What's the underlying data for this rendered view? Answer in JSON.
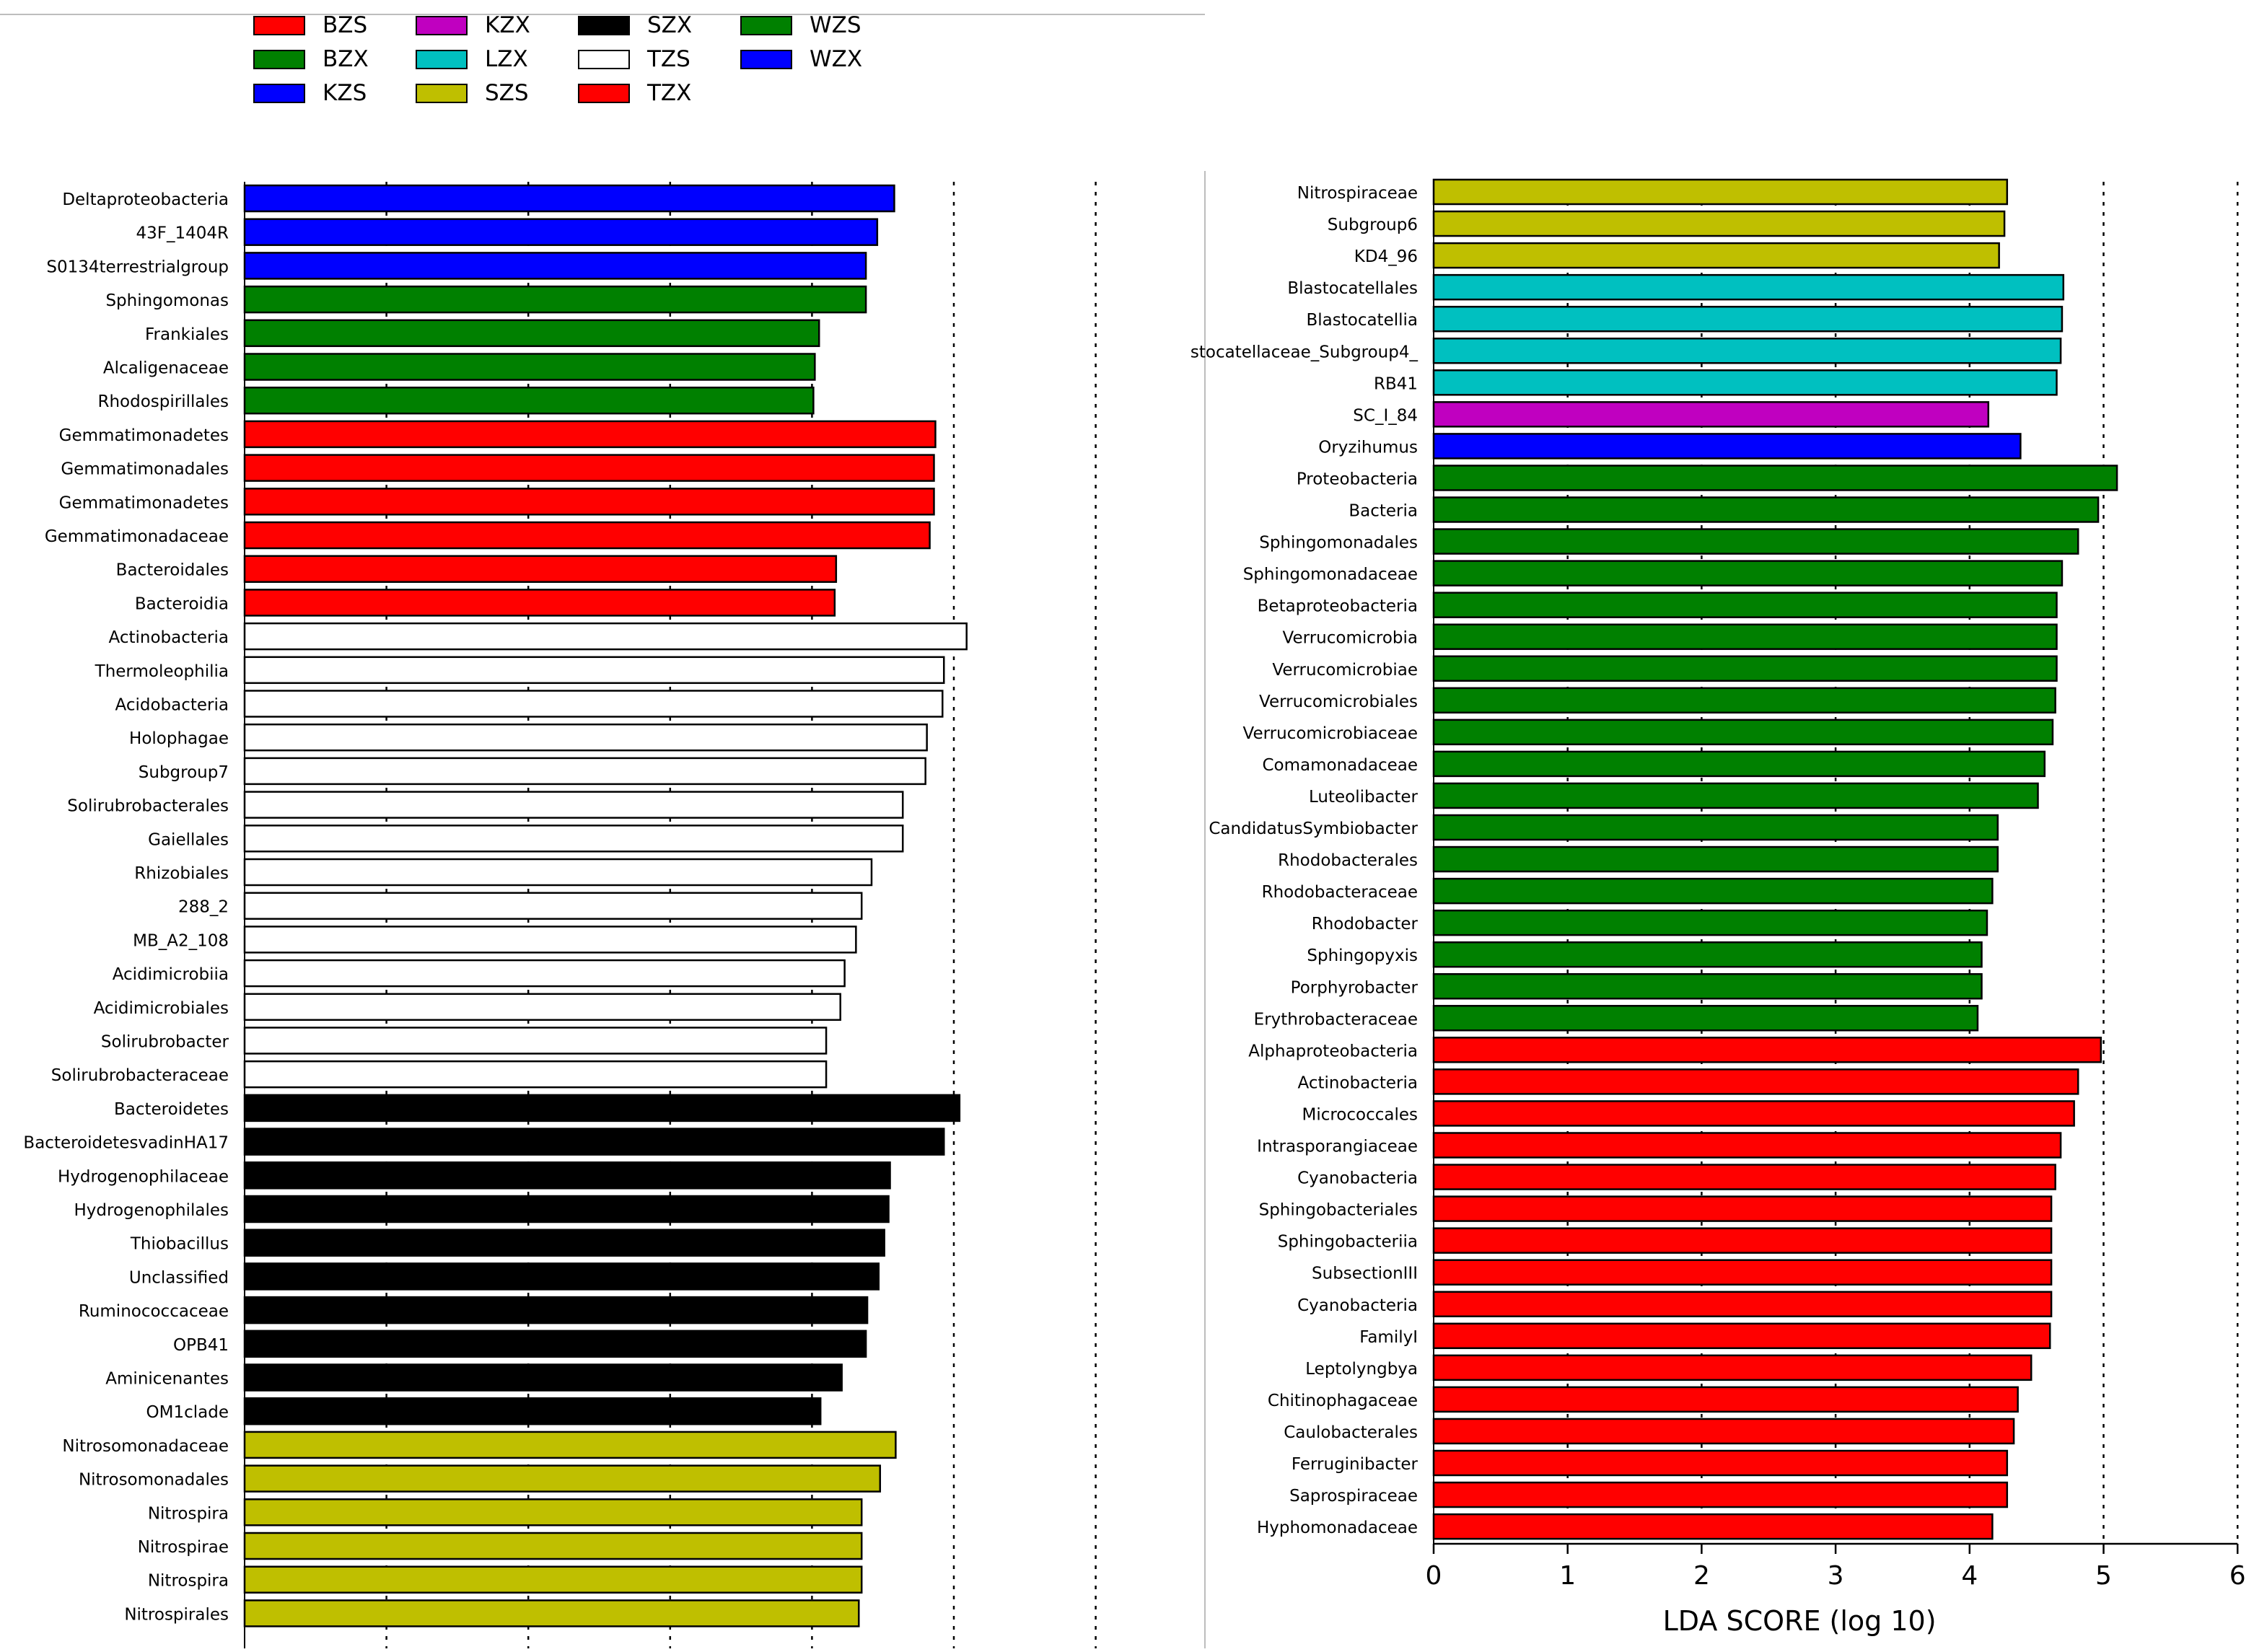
{
  "chart_data": {
    "type": "bar",
    "orientation": "horizontal",
    "title": "",
    "xlabel": "LDA SCORE (log 10)",
    "xlim": [
      0,
      6
    ],
    "xticks": [
      "0",
      "1",
      "2",
      "3",
      "4",
      "5",
      "6"
    ],
    "grid": "vertical dotted",
    "legend": {
      "position": "top-left",
      "items": [
        {
          "label": "BZS",
          "color": "#ff0000"
        },
        {
          "label": "BZX",
          "color": "#008000"
        },
        {
          "label": "KZS",
          "color": "#0000ff"
        },
        {
          "label": "KZX",
          "color": "#c000c0"
        },
        {
          "label": "LZX",
          "color": "#00c0c0"
        },
        {
          "label": "SZS",
          "color": "#bfbf00"
        },
        {
          "label": "SZX",
          "color": "#000000"
        },
        {
          "label": "TZS",
          "color": "#ffffff"
        },
        {
          "label": "TZX",
          "color": "#ff0000"
        },
        {
          "label": "WZS",
          "color": "#008000"
        },
        {
          "label": "WZX",
          "color": "#0000ff"
        }
      ]
    },
    "panels": [
      {
        "name": "left",
        "bars": [
          {
            "label": "Deltaproteobacteria",
            "value": 4.58,
            "group": "KZS"
          },
          {
            "label": "43F_1404R",
            "value": 4.46,
            "group": "KZS"
          },
          {
            "label": "S0134terrestrialgroup",
            "value": 4.38,
            "group": "KZS"
          },
          {
            "label": "Sphingomonas",
            "value": 4.38,
            "group": "BZX"
          },
          {
            "label": "Frankiales",
            "value": 4.05,
            "group": "BZX"
          },
          {
            "label": "Alcaligenaceae",
            "value": 4.02,
            "group": "BZX"
          },
          {
            "label": "Rhodospirillales",
            "value": 4.01,
            "group": "BZX"
          },
          {
            "label": "Gemmatimonadetes",
            "value": 4.87,
            "group": "BZS"
          },
          {
            "label": "Gemmatimonadales",
            "value": 4.86,
            "group": "BZS"
          },
          {
            "label": "Gemmatimonadetes",
            "value": 4.86,
            "group": "BZS"
          },
          {
            "label": "Gemmatimonadaceae",
            "value": 4.83,
            "group": "BZS"
          },
          {
            "label": "Bacteroidales",
            "value": 4.17,
            "group": "BZS"
          },
          {
            "label": "Bacteroidia",
            "value": 4.16,
            "group": "BZS"
          },
          {
            "label": "Actinobacteria",
            "value": 5.09,
            "group": "TZS"
          },
          {
            "label": "Thermoleophilia",
            "value": 4.93,
            "group": "TZS"
          },
          {
            "label": "Acidobacteria",
            "value": 4.92,
            "group": "TZS"
          },
          {
            "label": "Holophagae",
            "value": 4.81,
            "group": "TZS"
          },
          {
            "label": "Subgroup7",
            "value": 4.8,
            "group": "TZS"
          },
          {
            "label": "Solirubrobacterales",
            "value": 4.64,
            "group": "TZS"
          },
          {
            "label": "Gaiellales",
            "value": 4.64,
            "group": "TZS"
          },
          {
            "label": "Rhizobiales",
            "value": 4.42,
            "group": "TZS"
          },
          {
            "label": "288_2",
            "value": 4.35,
            "group": "TZS"
          },
          {
            "label": "MB_A2_108",
            "value": 4.31,
            "group": "TZS"
          },
          {
            "label": "Acidimicrobiia",
            "value": 4.23,
            "group": "TZS"
          },
          {
            "label": "Acidimicrobiales",
            "value": 4.2,
            "group": "TZS"
          },
          {
            "label": "Solirubrobacter",
            "value": 4.1,
            "group": "TZS"
          },
          {
            "label": "Solirubrobacteraceae",
            "value": 4.1,
            "group": "TZS"
          },
          {
            "label": "Bacteroidetes",
            "value": 5.04,
            "group": "SZX"
          },
          {
            "label": "BacteroidetesvadinHA17",
            "value": 4.93,
            "group": "SZX"
          },
          {
            "label": "Hydrogenophilaceae",
            "value": 4.55,
            "group": "SZX"
          },
          {
            "label": "Hydrogenophilales",
            "value": 4.54,
            "group": "SZX"
          },
          {
            "label": "Thiobacillus",
            "value": 4.51,
            "group": "SZX"
          },
          {
            "label": "Unclassified",
            "value": 4.47,
            "group": "SZX"
          },
          {
            "label": "Ruminococcaceae",
            "value": 4.39,
            "group": "SZX"
          },
          {
            "label": "OPB41",
            "value": 4.38,
            "group": "SZX"
          },
          {
            "label": "Aminicenantes",
            "value": 4.21,
            "group": "SZX"
          },
          {
            "label": "OM1clade",
            "value": 4.06,
            "group": "SZX"
          },
          {
            "label": "Nitrosomonadaceae",
            "value": 4.59,
            "group": "SZS"
          },
          {
            "label": "Nitrosomonadales",
            "value": 4.48,
            "group": "SZS"
          },
          {
            "label": "Nitrospira",
            "value": 4.35,
            "group": "SZS"
          },
          {
            "label": "Nitrospirae",
            "value": 4.35,
            "group": "SZS"
          },
          {
            "label": "Nitrospira",
            "value": 4.35,
            "group": "SZS"
          },
          {
            "label": "Nitrospirales",
            "value": 4.33,
            "group": "SZS"
          }
        ]
      },
      {
        "name": "right",
        "bars": [
          {
            "label": "Nitrospiraceae",
            "value": 4.28,
            "group": "SZS"
          },
          {
            "label": "Subgroup6",
            "value": 4.26,
            "group": "SZS"
          },
          {
            "label": "KD4_96",
            "value": 4.22,
            "group": "SZS"
          },
          {
            "label": "Blastocatellales",
            "value": 4.7,
            "group": "LZX"
          },
          {
            "label": "Blastocatellia",
            "value": 4.69,
            "group": "LZX"
          },
          {
            "label": "stocatellaceae_Subgroup4_",
            "value": 4.68,
            "group": "LZX"
          },
          {
            "label": "RB41",
            "value": 4.65,
            "group": "LZX"
          },
          {
            "label": "SC_I_84",
            "value": 4.14,
            "group": "KZX"
          },
          {
            "label": "Oryzihumus",
            "value": 4.38,
            "group": "WZX"
          },
          {
            "label": "Proteobacteria",
            "value": 5.1,
            "group": "WZS"
          },
          {
            "label": "Bacteria",
            "value": 4.96,
            "group": "WZS"
          },
          {
            "label": "Sphingomonadales",
            "value": 4.81,
            "group": "WZS"
          },
          {
            "label": "Sphingomonadaceae",
            "value": 4.69,
            "group": "WZS"
          },
          {
            "label": "Betaproteobacteria",
            "value": 4.65,
            "group": "WZS"
          },
          {
            "label": "Verrucomicrobia",
            "value": 4.65,
            "group": "WZS"
          },
          {
            "label": "Verrucomicrobiae",
            "value": 4.65,
            "group": "WZS"
          },
          {
            "label": "Verrucomicrobiales",
            "value": 4.64,
            "group": "WZS"
          },
          {
            "label": "Verrucomicrobiaceae",
            "value": 4.62,
            "group": "WZS"
          },
          {
            "label": "Comamonadaceae",
            "value": 4.56,
            "group": "WZS"
          },
          {
            "label": "Luteolibacter",
            "value": 4.51,
            "group": "WZS"
          },
          {
            "label": "CandidatusSymbiobacter",
            "value": 4.21,
            "group": "WZS"
          },
          {
            "label": "Rhodobacterales",
            "value": 4.21,
            "group": "WZS"
          },
          {
            "label": "Rhodobacteraceae",
            "value": 4.17,
            "group": "WZS"
          },
          {
            "label": "Rhodobacter",
            "value": 4.13,
            "group": "WZS"
          },
          {
            "label": "Sphingopyxis",
            "value": 4.09,
            "group": "WZS"
          },
          {
            "label": "Porphyrobacter",
            "value": 4.09,
            "group": "WZS"
          },
          {
            "label": "Erythrobacteraceae",
            "value": 4.06,
            "group": "WZS"
          },
          {
            "label": "Alphaproteobacteria",
            "value": 4.98,
            "group": "TZX"
          },
          {
            "label": "Actinobacteria",
            "value": 4.81,
            "group": "TZX"
          },
          {
            "label": "Micrococcales",
            "value": 4.78,
            "group": "TZX"
          },
          {
            "label": "Intrasporangiaceae",
            "value": 4.68,
            "group": "TZX"
          },
          {
            "label": "Cyanobacteria",
            "value": 4.64,
            "group": "TZX"
          },
          {
            "label": "Sphingobacteriales",
            "value": 4.61,
            "group": "TZX"
          },
          {
            "label": "Sphingobacteriia",
            "value": 4.61,
            "group": "TZX"
          },
          {
            "label": "SubsectionIII",
            "value": 4.61,
            "group": "TZX"
          },
          {
            "label": "Cyanobacteria",
            "value": 4.61,
            "group": "TZX"
          },
          {
            "label": "FamilyI",
            "value": 4.6,
            "group": "TZX"
          },
          {
            "label": "Leptolyngbya",
            "value": 4.46,
            "group": "TZX"
          },
          {
            "label": "Chitinophagaceae",
            "value": 4.36,
            "group": "TZX"
          },
          {
            "label": "Caulobacterales",
            "value": 4.33,
            "group": "TZX"
          },
          {
            "label": "Ferruginibacter",
            "value": 4.28,
            "group": "TZX"
          },
          {
            "label": "Saprospiraceae",
            "value": 4.28,
            "group": "TZX"
          },
          {
            "label": "Hyphomonadaceae",
            "value": 4.17,
            "group": "TZX"
          }
        ]
      }
    ]
  }
}
